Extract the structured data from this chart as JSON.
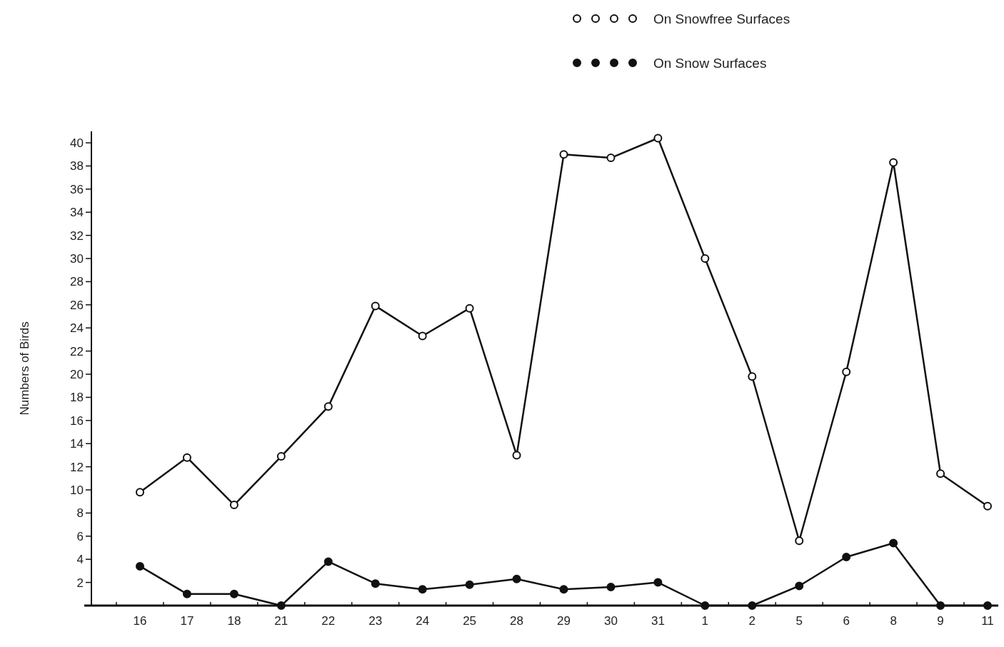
{
  "chart_data": {
    "type": "line",
    "ylabel": "Numbers of Birds",
    "categories": [
      "16",
      "17",
      "18",
      "21",
      "22",
      "23",
      "24",
      "25",
      "28",
      "29",
      "30",
      "31",
      "1",
      "2",
      "5",
      "6",
      "8",
      "9",
      "11"
    ],
    "series": [
      {
        "name": "On Snowfree Surfaces",
        "color": "#111111",
        "values": [
          9.8,
          12.8,
          8.7,
          12.9,
          17.2,
          25.9,
          23.3,
          25.7,
          13.0,
          39.0,
          38.7,
          40.4,
          30.0,
          19.8,
          5.6,
          20.2,
          38.3,
          11.4,
          8.6
        ]
      },
      {
        "name": "On Snow Surfaces",
        "color": "#111111",
        "values": [
          3.4,
          1.0,
          1.0,
          0,
          3.8,
          1.9,
          1.4,
          1.8,
          2.3,
          1.4,
          1.6,
          2.0,
          0,
          0,
          1.7,
          4.2,
          5.4,
          0,
          0
        ]
      }
    ],
    "ylim": [
      0,
      41
    ],
    "yticks": [
      2,
      4,
      6,
      8,
      10,
      12,
      14,
      16,
      18,
      20,
      22,
      24,
      26,
      28,
      30,
      32,
      34,
      36,
      38,
      40
    ],
    "marker": "circle",
    "line_style": "solid",
    "grid": false,
    "legend": "top right"
  }
}
